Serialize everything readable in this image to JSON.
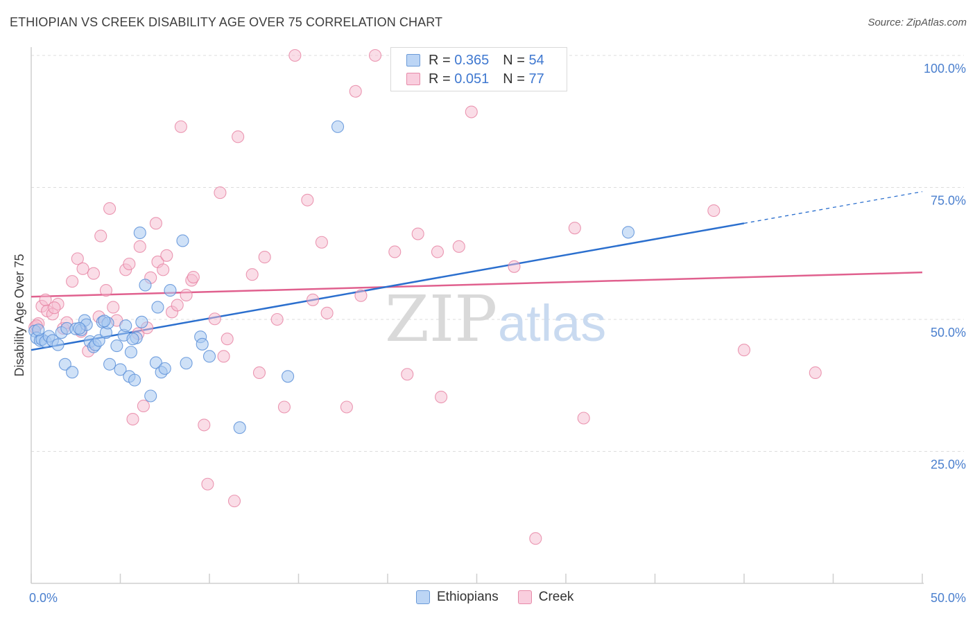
{
  "header": {
    "title": "ETHIOPIAN VS CREEK DISABILITY AGE OVER 75 CORRELATION CHART",
    "source": "Source: ZipAtlas.com"
  },
  "watermark": {
    "zip": "ZIP",
    "atlas": "atlas"
  },
  "legend": {
    "ethiopians": {
      "r_label": "R =",
      "r_value": "0.365",
      "n_label": "N =",
      "n_value": "54"
    },
    "creek": {
      "r_label": "R =",
      "r_value": "0.051",
      "n_label": "N =",
      "n_value": "77"
    }
  },
  "bottom_legend": {
    "ethiopians": "Ethiopians",
    "creek": "Creek"
  },
  "colors": {
    "blue_fill": "#a8c8f0",
    "blue_stroke": "#5a8fd8",
    "blue_line": "#2b6fce",
    "pink_fill": "#f6bcd0",
    "pink_stroke": "#e67fa0",
    "pink_line": "#e0608e",
    "tick_label": "#4a7fce"
  },
  "chart_data": {
    "type": "scatter",
    "title": "ETHIOPIAN VS CREEK DISABILITY AGE OVER 75 CORRELATION CHART",
    "xlabel": "",
    "ylabel": "Disability Age Over 75",
    "xlim": [
      0,
      50
    ],
    "ylim": [
      0,
      103
    ],
    "x_tick_labels": [
      "0.0%",
      "50.0%"
    ],
    "y_ticks": [
      25,
      50,
      75,
      100
    ],
    "y_tick_labels": [
      "25.0%",
      "50.0%",
      "75.0%",
      "100.0%"
    ],
    "grid": true,
    "series": [
      {
        "name": "Ethiopians",
        "r": 0.365,
        "n": 54,
        "trend": {
          "x0": 0,
          "y0": 44.2,
          "x1": 40,
          "y1": 68.2,
          "dashed_to_x": 50,
          "dashed_to_y": 74.2
        },
        "points": [
          [
            0.2,
            47.8
          ],
          [
            0.3,
            46.5
          ],
          [
            0.5,
            46.0
          ],
          [
            0.6,
            46.2
          ],
          [
            0.8,
            45.8
          ],
          [
            1.0,
            46.8
          ],
          [
            1.2,
            46.0
          ],
          [
            1.5,
            45.2
          ],
          [
            1.7,
            47.5
          ],
          [
            1.9,
            41.5
          ],
          [
            2.0,
            48.3
          ],
          [
            2.3,
            40.0
          ],
          [
            2.5,
            48.2
          ],
          [
            2.8,
            48.0
          ],
          [
            3.0,
            49.8
          ],
          [
            3.1,
            49.0
          ],
          [
            3.3,
            45.8
          ],
          [
            3.5,
            44.8
          ],
          [
            3.6,
            45.2
          ],
          [
            3.8,
            46.0
          ],
          [
            4.0,
            49.5
          ],
          [
            4.2,
            47.5
          ],
          [
            4.3,
            49.3
          ],
          [
            4.4,
            41.5
          ],
          [
            4.8,
            45.0
          ],
          [
            5.0,
            40.5
          ],
          [
            5.2,
            47.0
          ],
          [
            5.3,
            48.8
          ],
          [
            5.5,
            39.2
          ],
          [
            5.6,
            43.8
          ],
          [
            5.8,
            38.5
          ],
          [
            5.9,
            46.5
          ],
          [
            6.1,
            66.4
          ],
          [
            6.2,
            49.5
          ],
          [
            6.4,
            56.5
          ],
          [
            6.7,
            35.5
          ],
          [
            7.0,
            41.8
          ],
          [
            7.1,
            52.3
          ],
          [
            7.3,
            40.0
          ],
          [
            7.5,
            40.7
          ],
          [
            7.8,
            55.5
          ],
          [
            8.5,
            64.9
          ],
          [
            8.7,
            41.7
          ],
          [
            9.5,
            46.7
          ],
          [
            9.6,
            45.3
          ],
          [
            10.0,
            43.0
          ],
          [
            11.7,
            29.5
          ],
          [
            14.4,
            39.2
          ],
          [
            17.2,
            86.5
          ],
          [
            33.5,
            66.5
          ],
          [
            0.4,
            48.0
          ],
          [
            2.7,
            48.3
          ],
          [
            4.1,
            49.7
          ],
          [
            5.7,
            46.3
          ]
        ]
      },
      {
        "name": "Creek",
        "r": 0.051,
        "n": 77,
        "trend": {
          "x0": 0,
          "y0": 54.3,
          "x1": 50,
          "y1": 58.9
        },
        "points": [
          [
            0.2,
            48.5
          ],
          [
            0.4,
            49.2
          ],
          [
            0.6,
            52.5
          ],
          [
            0.8,
            53.7
          ],
          [
            0.9,
            51.6
          ],
          [
            1.2,
            51.0
          ],
          [
            1.5,
            52.9
          ],
          [
            1.8,
            48.3
          ],
          [
            2.0,
            49.4
          ],
          [
            2.3,
            57.2
          ],
          [
            2.6,
            61.5
          ],
          [
            2.9,
            59.6
          ],
          [
            3.2,
            44.0
          ],
          [
            3.5,
            58.7
          ],
          [
            3.8,
            50.5
          ],
          [
            3.9,
            65.8
          ],
          [
            4.2,
            55.5
          ],
          [
            4.4,
            71.0
          ],
          [
            4.6,
            52.3
          ],
          [
            4.8,
            49.8
          ],
          [
            5.3,
            59.4
          ],
          [
            5.5,
            60.5
          ],
          [
            5.7,
            31.1
          ],
          [
            6.0,
            47.3
          ],
          [
            6.1,
            63.8
          ],
          [
            6.3,
            33.6
          ],
          [
            6.5,
            48.4
          ],
          [
            6.7,
            57.9
          ],
          [
            7.0,
            68.2
          ],
          [
            7.1,
            60.9
          ],
          [
            7.4,
            59.4
          ],
          [
            7.6,
            62.1
          ],
          [
            7.9,
            51.4
          ],
          [
            8.2,
            52.7
          ],
          [
            8.4,
            86.5
          ],
          [
            8.7,
            54.6
          ],
          [
            9.0,
            57.4
          ],
          [
            9.1,
            58.0
          ],
          [
            9.7,
            30.0
          ],
          [
            9.9,
            18.8
          ],
          [
            10.3,
            50.1
          ],
          [
            10.6,
            74.0
          ],
          [
            10.8,
            43.0
          ],
          [
            11.0,
            46.3
          ],
          [
            11.4,
            15.6
          ],
          [
            11.6,
            84.6
          ],
          [
            12.4,
            58.5
          ],
          [
            12.8,
            39.9
          ],
          [
            13.1,
            61.8
          ],
          [
            13.8,
            50.0
          ],
          [
            14.2,
            33.4
          ],
          [
            14.8,
            100.0
          ],
          [
            15.5,
            72.6
          ],
          [
            15.8,
            53.7
          ],
          [
            16.3,
            64.6
          ],
          [
            16.6,
            51.2
          ],
          [
            17.7,
            33.4
          ],
          [
            18.2,
            93.2
          ],
          [
            18.5,
            54.5
          ],
          [
            19.3,
            100.0
          ],
          [
            20.4,
            62.8
          ],
          [
            21.1,
            39.6
          ],
          [
            21.7,
            66.2
          ],
          [
            22.8,
            62.8
          ],
          [
            23.0,
            35.3
          ],
          [
            24.0,
            63.8
          ],
          [
            24.7,
            89.3
          ],
          [
            27.1,
            60.0
          ],
          [
            28.3,
            8.5
          ],
          [
            30.5,
            67.3
          ],
          [
            31.0,
            31.3
          ],
          [
            38.3,
            70.6
          ],
          [
            40.0,
            44.2
          ],
          [
            44.0,
            39.9
          ],
          [
            0.3,
            48.8
          ],
          [
            1.3,
            52.2
          ],
          [
            2.8,
            47.7
          ]
        ]
      }
    ]
  }
}
